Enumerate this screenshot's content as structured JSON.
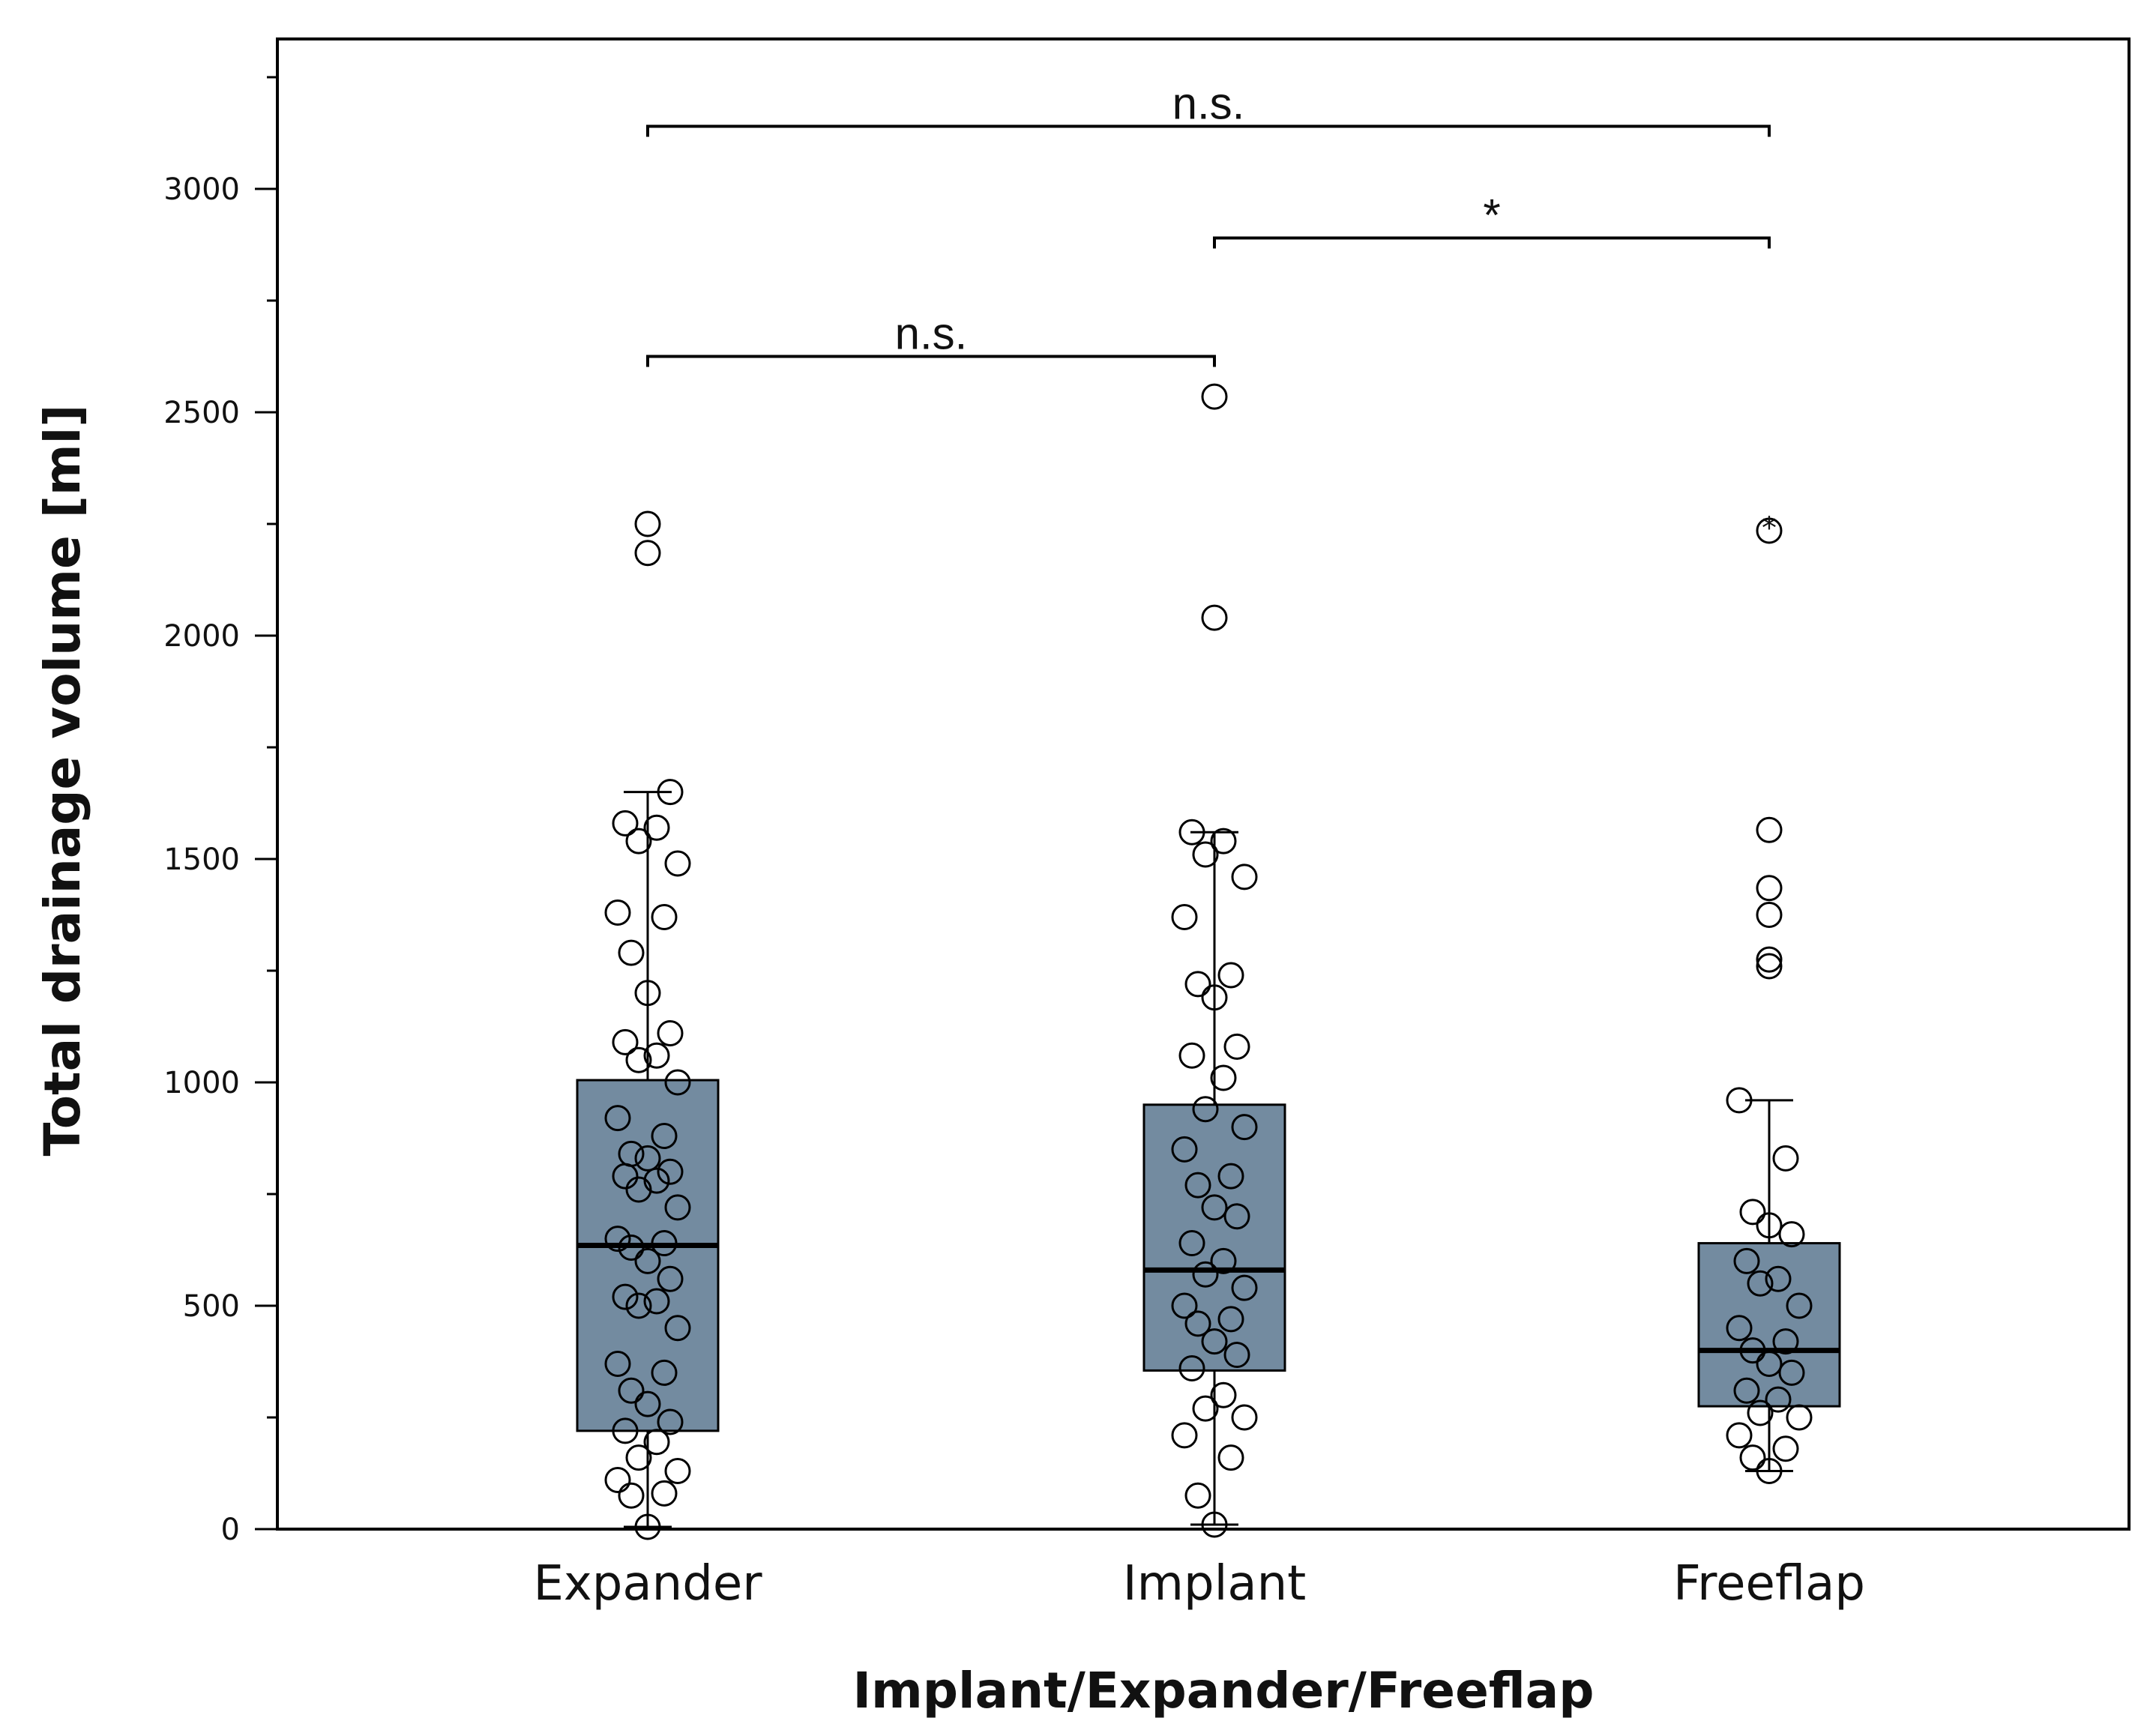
{
  "chart_data": {
    "type": "box",
    "title": "",
    "xlabel": "Implant/Expander/Freeflap",
    "ylabel": "Total drainage volume [ml]",
    "ylim": [
      0,
      3300
    ],
    "yticks": [
      0,
      500,
      1000,
      1500,
      2000,
      2500,
      3000
    ],
    "yticks_minor_step": 250,
    "categories": [
      "Expander",
      "Implant",
      "Freeflap"
    ],
    "colors": {
      "box_fill": "#738ba0",
      "stroke": "#000000",
      "background": "#ffffff"
    },
    "series": [
      {
        "name": "Expander",
        "q1": 220,
        "median": 635,
        "q3": 1005,
        "whisker_low": 5,
        "whisker_high": 1650,
        "outliers": [
          2185,
          2250
        ],
        "points": [
          5,
          75,
          80,
          110,
          130,
          160,
          195,
          220,
          240,
          280,
          310,
          350,
          370,
          450,
          500,
          510,
          520,
          560,
          600,
          630,
          640,
          650,
          720,
          760,
          780,
          790,
          800,
          830,
          840,
          880,
          920,
          1000,
          1050,
          1060,
          1090,
          1110,
          1200,
          1290,
          1370,
          1380,
          1490,
          1540,
          1570,
          1580,
          1650
        ]
      },
      {
        "name": "Implant",
        "q1": 355,
        "median": 580,
        "q3": 950,
        "whisker_low": 10,
        "whisker_high": 1560,
        "outliers": [
          2040,
          2535
        ],
        "points": [
          10,
          75,
          160,
          210,
          250,
          270,
          300,
          360,
          390,
          420,
          460,
          470,
          500,
          540,
          570,
          600,
          640,
          700,
          720,
          770,
          790,
          850,
          900,
          940,
          1010,
          1060,
          1080,
          1190,
          1220,
          1240,
          1370,
          1460,
          1510,
          1540,
          1560
        ]
      },
      {
        "name": "Freeflap",
        "q1": 275,
        "median": 400,
        "q3": 640,
        "whisker_low": 130,
        "whisker_high": 960,
        "outliers": [
          1260,
          1275,
          1375,
          1435,
          1565,
          2235
        ],
        "extreme_outliers": [
          2235
        ],
        "points": [
          130,
          160,
          180,
          210,
          250,
          260,
          290,
          310,
          350,
          370,
          400,
          420,
          450,
          500,
          550,
          560,
          600,
          660,
          680,
          710,
          830,
          960
        ]
      }
    ],
    "significance": [
      {
        "from": "Expander",
        "to": "Freeflap",
        "y": 3140,
        "label": "n.s."
      },
      {
        "from": "Implant",
        "to": "Freeflap",
        "y": 2890,
        "label": "*"
      },
      {
        "from": "Expander",
        "to": "Implant",
        "y": 2625,
        "label": "n.s."
      }
    ]
  }
}
